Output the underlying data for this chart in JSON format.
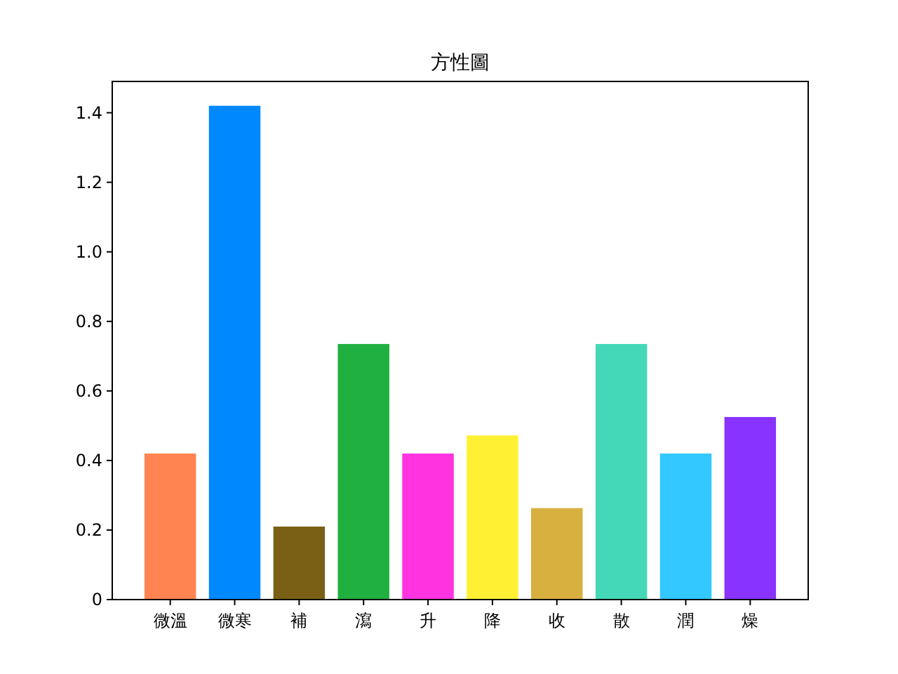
{
  "chart_data": {
    "type": "bar",
    "title": "方性圖",
    "categories": [
      "微溫",
      "微寒",
      "補",
      "瀉",
      "升",
      "降",
      "收",
      "散",
      "潤",
      "燥"
    ],
    "values": [
      0.42,
      1.42,
      0.21,
      0.735,
      0.42,
      0.472,
      0.263,
      0.735,
      0.42,
      0.525
    ],
    "colors": [
      "#ff8452",
      "#0088ff",
      "#7a6014",
      "#20b040",
      "#ff33e0",
      "#fff033",
      "#d8b040",
      "#44d8b8",
      "#33c8ff",
      "#8833ff"
    ],
    "ylim": [
      0,
      1.49
    ],
    "yticks": [
      0,
      {
        "value": 0.2,
        "label": "0.2"
      },
      {
        "value": 0.4,
        "label": "0.4"
      },
      {
        "value": 0.6,
        "label": "0.6"
      },
      {
        "value": 0.8,
        "label": "0.8"
      },
      {
        "value": 1,
        "label": "1.0"
      },
      {
        "value": 1.2,
        "label": "1.2"
      },
      {
        "value": 1.4,
        "label": "1.4"
      }
    ],
    "grid": false
  }
}
